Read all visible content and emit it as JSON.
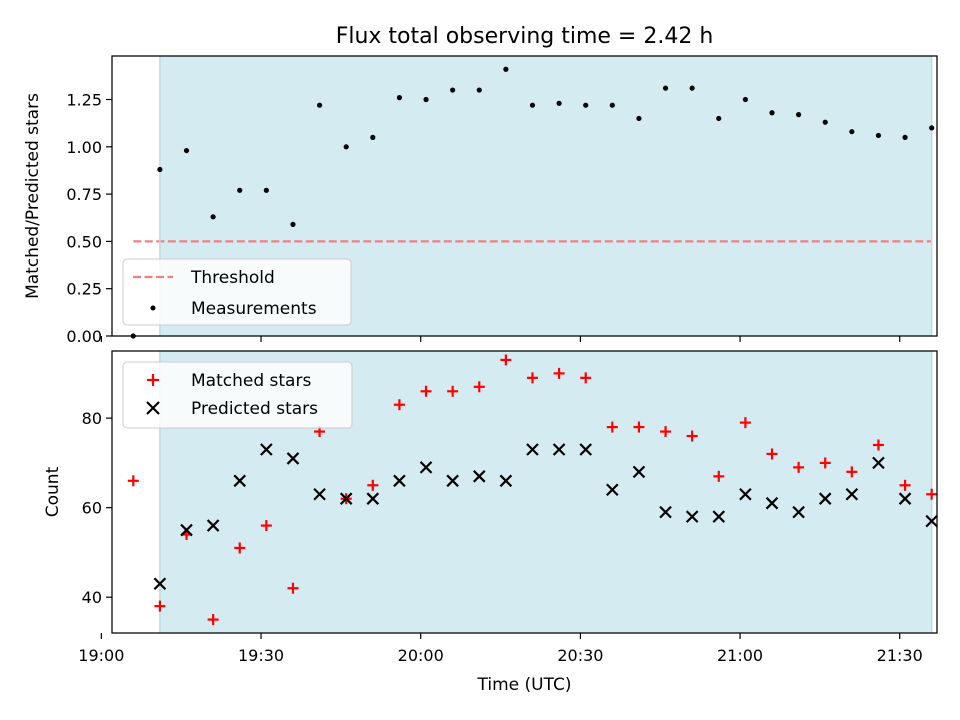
{
  "chart_data": [
    {
      "type": "scatter",
      "title": "Flux total observing time = 2.42 h",
      "xlabel": "",
      "ylabel": "Matched/Predicted stars",
      "xlim": [
        "19:02",
        "21:37"
      ],
      "ylim": [
        0,
        1.48
      ],
      "yticks": [
        "0.00",
        "0.25",
        "0.50",
        "0.75",
        "1.00",
        "1.25"
      ],
      "ytick_values": [
        0,
        0.25,
        0.5,
        0.75,
        1.0,
        1.25
      ],
      "observing_window": {
        "start": "19:11",
        "end": "21:36",
        "color": "#d4ebf1"
      },
      "threshold": {
        "name": "Threshold",
        "value": 0.5,
        "x_start": "19:06",
        "x_end": "21:36",
        "color": "#f08080",
        "style": "dashed"
      },
      "legend": {
        "placement": "lower-left"
      },
      "series": [
        {
          "name": "Measurements",
          "color": "#000000",
          "marker": "dot",
          "points": [
            [
              "19:06",
              0.0
            ],
            [
              "19:11",
              0.88
            ],
            [
              "19:16",
              0.98
            ],
            [
              "19:21",
              0.63
            ],
            [
              "19:26",
              0.77
            ],
            [
              "19:31",
              0.77
            ],
            [
              "19:36",
              0.59
            ],
            [
              "19:41",
              1.22
            ],
            [
              "19:46",
              1.0
            ],
            [
              "19:51",
              1.05
            ],
            [
              "19:56",
              1.26
            ],
            [
              "20:01",
              1.25
            ],
            [
              "20:06",
              1.3
            ],
            [
              "20:11",
              1.3
            ],
            [
              "20:16",
              1.41
            ],
            [
              "20:21",
              1.22
            ],
            [
              "20:26",
              1.23
            ],
            [
              "20:31",
              1.22
            ],
            [
              "20:36",
              1.22
            ],
            [
              "20:41",
              1.15
            ],
            [
              "20:46",
              1.31
            ],
            [
              "20:51",
              1.31
            ],
            [
              "20:56",
              1.15
            ],
            [
              "21:01",
              1.25
            ],
            [
              "21:06",
              1.18
            ],
            [
              "21:11",
              1.17
            ],
            [
              "21:16",
              1.13
            ],
            [
              "21:21",
              1.08
            ],
            [
              "21:26",
              1.06
            ],
            [
              "21:31",
              1.05
            ],
            [
              "21:36",
              1.1
            ]
          ]
        }
      ]
    },
    {
      "type": "scatter",
      "title": "",
      "xlabel": "Time (UTC)",
      "ylabel": "Count",
      "xlim": [
        "19:02",
        "21:37"
      ],
      "ylim": [
        32,
        95
      ],
      "yticks": [
        "40",
        "60",
        "80"
      ],
      "ytick_values": [
        40,
        60,
        80
      ],
      "xticks": [
        "19:00",
        "19:30",
        "20:00",
        "20:30",
        "21:00",
        "21:30"
      ],
      "observing_window": {
        "start": "19:11",
        "end": "21:36",
        "color": "#d4ebf1"
      },
      "legend": {
        "placement": "upper-left"
      },
      "series": [
        {
          "name": "Matched stars",
          "color": "#ff0000",
          "marker": "plus",
          "points": [
            [
              "19:06",
              66
            ],
            [
              "19:11",
              38
            ],
            [
              "19:16",
              54
            ],
            [
              "19:21",
              35
            ],
            [
              "19:26",
              51
            ],
            [
              "19:31",
              56
            ],
            [
              "19:36",
              42
            ],
            [
              "19:41",
              77
            ],
            [
              "19:46",
              62
            ],
            [
              "19:51",
              65
            ],
            [
              "19:56",
              83
            ],
            [
              "20:01",
              86
            ],
            [
              "20:06",
              86
            ],
            [
              "20:11",
              87
            ],
            [
              "20:16",
              93
            ],
            [
              "20:21",
              89
            ],
            [
              "20:26",
              90
            ],
            [
              "20:31",
              89
            ],
            [
              "20:36",
              78
            ],
            [
              "20:41",
              78
            ],
            [
              "20:46",
              77
            ],
            [
              "20:51",
              76
            ],
            [
              "20:56",
              67
            ],
            [
              "21:01",
              79
            ],
            [
              "21:06",
              72
            ],
            [
              "21:11",
              69
            ],
            [
              "21:16",
              70
            ],
            [
              "21:21",
              68
            ],
            [
              "21:26",
              74
            ],
            [
              "21:31",
              65
            ],
            [
              "21:36",
              63
            ]
          ]
        },
        {
          "name": "Predicted stars",
          "color": "#000000",
          "marker": "x",
          "points": [
            [
              "19:11",
              43
            ],
            [
              "19:16",
              55
            ],
            [
              "19:21",
              56
            ],
            [
              "19:26",
              66
            ],
            [
              "19:31",
              73
            ],
            [
              "19:36",
              71
            ],
            [
              "19:41",
              63
            ],
            [
              "19:46",
              62
            ],
            [
              "19:51",
              62
            ],
            [
              "19:56",
              66
            ],
            [
              "20:01",
              69
            ],
            [
              "20:06",
              66
            ],
            [
              "20:11",
              67
            ],
            [
              "20:16",
              66
            ],
            [
              "20:21",
              73
            ],
            [
              "20:26",
              73
            ],
            [
              "20:31",
              73
            ],
            [
              "20:36",
              64
            ],
            [
              "20:41",
              68
            ],
            [
              "20:46",
              59
            ],
            [
              "20:51",
              58
            ],
            [
              "20:56",
              58
            ],
            [
              "21:01",
              63
            ],
            [
              "21:06",
              61
            ],
            [
              "21:11",
              59
            ],
            [
              "21:16",
              62
            ],
            [
              "21:21",
              63
            ],
            [
              "21:26",
              70
            ],
            [
              "21:31",
              62
            ],
            [
              "21:36",
              57
            ]
          ]
        }
      ]
    }
  ]
}
